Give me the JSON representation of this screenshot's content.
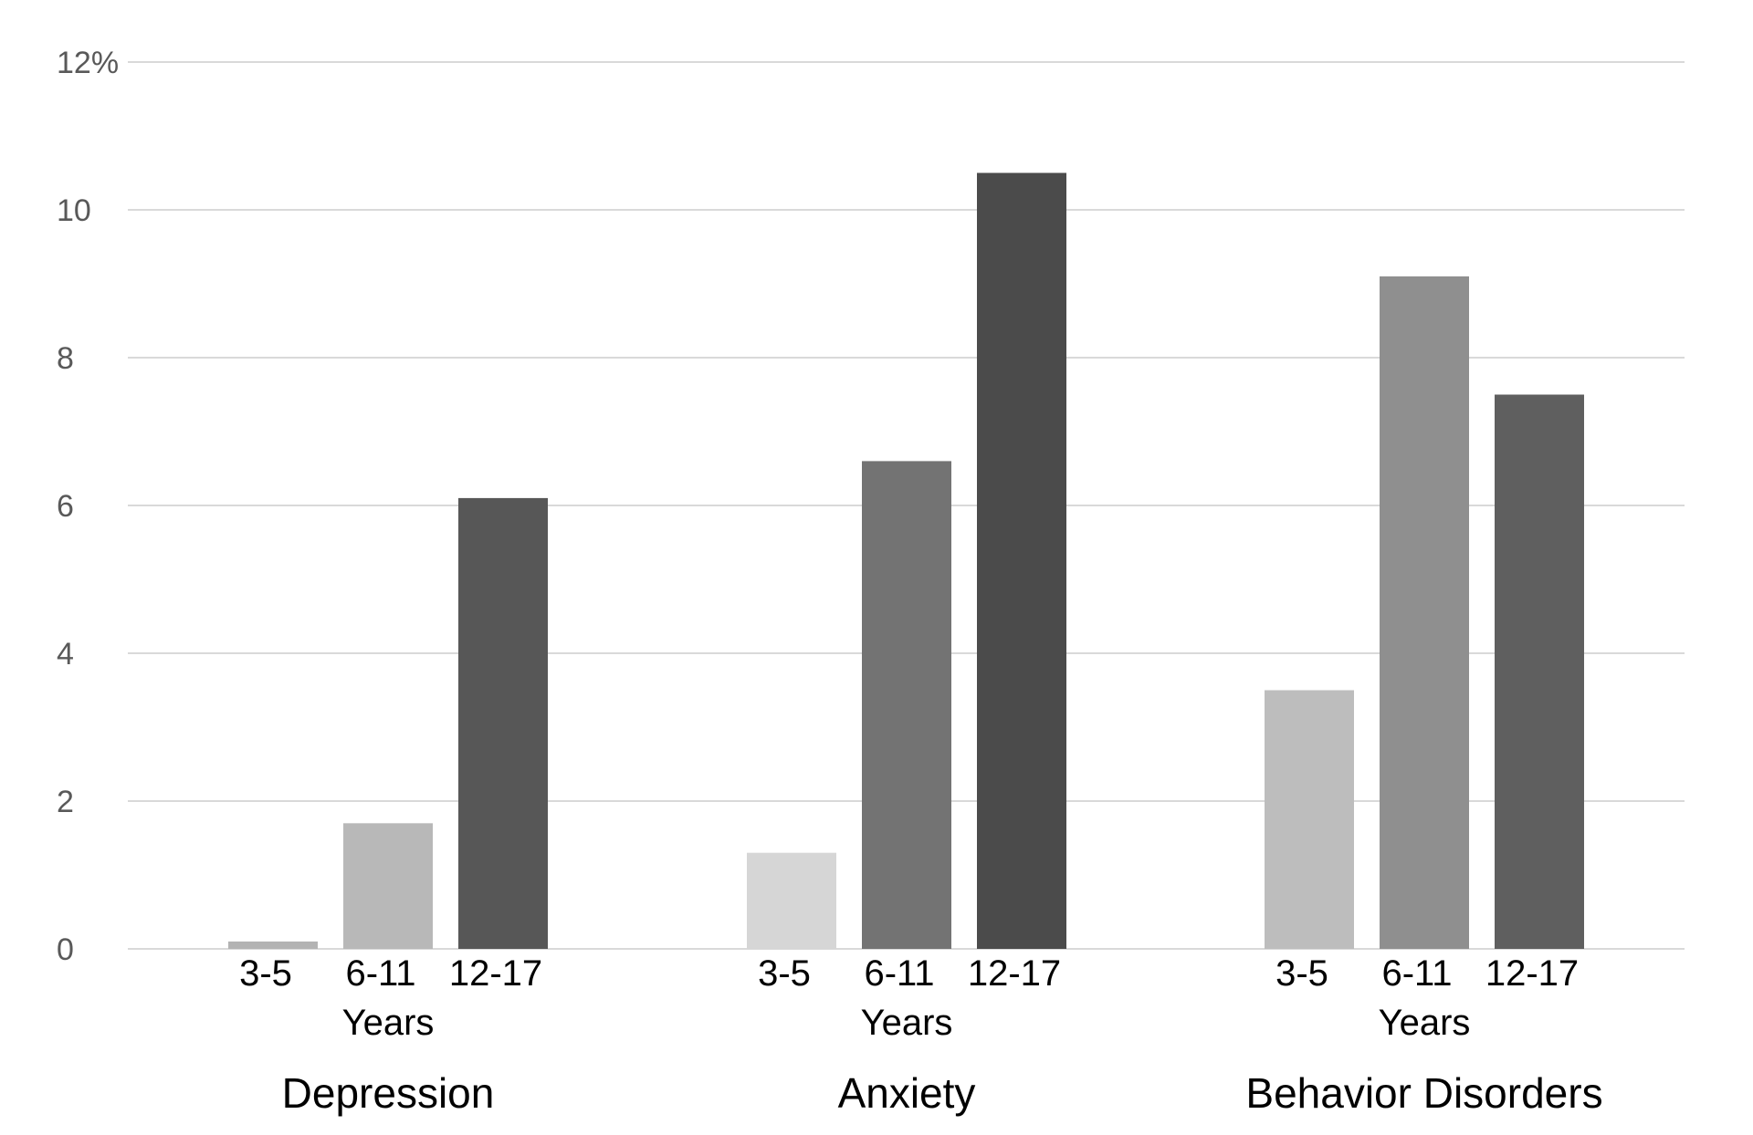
{
  "chart_data": {
    "type": "bar",
    "title": "",
    "xlabel": "",
    "ylabel": "",
    "ylim": [
      0,
      12
    ],
    "y_ticks": [
      "0",
      "2",
      "4",
      "6",
      "8",
      "10",
      "12%"
    ],
    "grid": true,
    "group_sublabel": "Years",
    "groups": [
      {
        "label": "Depression",
        "bars": [
          {
            "category": "3-5",
            "value": 0.1,
            "color": "#b3b3b3"
          },
          {
            "category": "6-11",
            "value": 1.7,
            "color": "#b8b8b8"
          },
          {
            "category": "12-17",
            "value": 6.1,
            "color": "#575757"
          }
        ]
      },
      {
        "label": "Anxiety",
        "bars": [
          {
            "category": "3-5",
            "value": 1.3,
            "color": "#d6d6d6"
          },
          {
            "category": "6-11",
            "value": 6.6,
            "color": "#737373"
          },
          {
            "category": "12-17",
            "value": 10.5,
            "color": "#4b4b4b"
          }
        ]
      },
      {
        "label": "Behavior Disorders",
        "bars": [
          {
            "category": "3-5",
            "value": 3.5,
            "color": "#bdbdbd"
          },
          {
            "category": "6-11",
            "value": 9.1,
            "color": "#8f8f8f"
          },
          {
            "category": "12-17",
            "value": 7.5,
            "color": "#5f5f5f"
          }
        ]
      }
    ]
  }
}
